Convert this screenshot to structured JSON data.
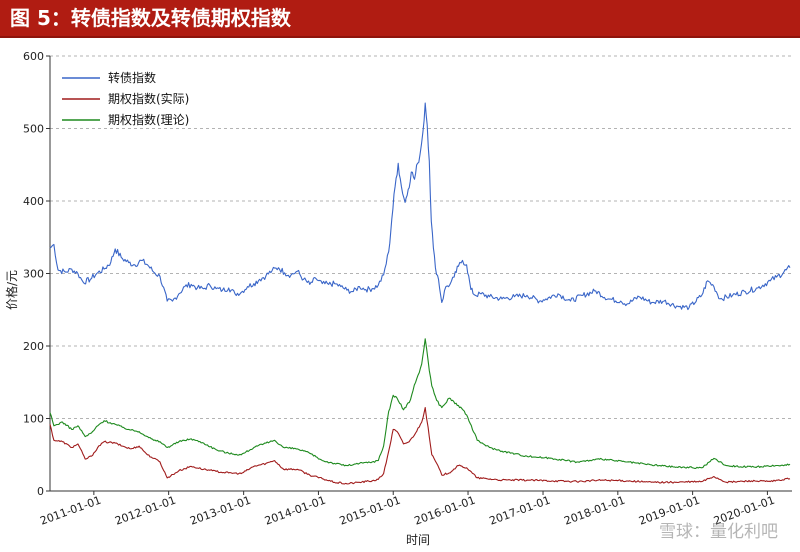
{
  "header": {
    "title": "图 5：转债指数及转债期权指数"
  },
  "watermark": "雪球：量化利吧",
  "colors": {
    "header_bg": "#b01c12",
    "cb_index": "#3a66c8",
    "option_actual": "#a01c1c",
    "option_theory": "#1f8a1f"
  },
  "chart_data": {
    "type": "line",
    "title": "",
    "xlabel": "时间",
    "ylabel": "价格/元",
    "ylim": [
      0,
      600
    ],
    "yticks": [
      0,
      100,
      200,
      300,
      400,
      500,
      600
    ],
    "x_range": [
      "2010-06-01",
      "2020-04-30"
    ],
    "xticks": [
      "2011-01-01",
      "2012-01-01",
      "2013-01-01",
      "2014-01-01",
      "2015-01-01",
      "2016-01-01",
      "2017-01-01",
      "2018-01-01",
      "2019-01-01",
      "2020-01-01"
    ],
    "grid": "horizontal dashed",
    "legend_position": "top-left",
    "series": [
      {
        "name": "转债指数",
        "color": "#3a66c8",
        "points": [
          [
            "2010-06-01",
            335
          ],
          [
            "2010-06-20",
            340
          ],
          [
            "2010-07-10",
            305
          ],
          [
            "2010-08-15",
            302
          ],
          [
            "2010-09-15",
            306
          ],
          [
            "2010-10-15",
            300
          ],
          [
            "2010-11-10",
            288
          ],
          [
            "2010-12-15",
            292
          ],
          [
            "2011-01-15",
            300
          ],
          [
            "2011-02-20",
            306
          ],
          [
            "2011-03-25",
            316
          ],
          [
            "2011-04-15",
            334
          ],
          [
            "2011-05-15",
            322
          ],
          [
            "2011-06-20",
            315
          ],
          [
            "2011-07-20",
            312
          ],
          [
            "2011-08-20",
            318
          ],
          [
            "2011-09-20",
            312
          ],
          [
            "2011-10-20",
            302
          ],
          [
            "2011-11-20",
            296
          ],
          [
            "2011-12-25",
            262
          ],
          [
            "2012-01-20",
            262
          ],
          [
            "2012-02-20",
            272
          ],
          [
            "2012-03-20",
            282
          ],
          [
            "2012-04-20",
            285
          ],
          [
            "2012-05-20",
            280
          ],
          [
            "2012-06-20",
            279
          ],
          [
            "2012-07-20",
            284
          ],
          [
            "2012-08-20",
            279
          ],
          [
            "2012-09-20",
            277
          ],
          [
            "2012-10-20",
            280
          ],
          [
            "2012-11-20",
            272
          ],
          [
            "2012-12-20",
            274
          ],
          [
            "2013-01-20",
            282
          ],
          [
            "2013-02-20",
            286
          ],
          [
            "2013-03-20",
            292
          ],
          [
            "2013-04-20",
            297
          ],
          [
            "2013-05-20",
            304
          ],
          [
            "2013-06-20",
            308
          ],
          [
            "2013-07-20",
            301
          ],
          [
            "2013-08-20",
            298
          ],
          [
            "2013-09-20",
            303
          ],
          [
            "2013-10-20",
            292
          ],
          [
            "2013-11-20",
            285
          ],
          [
            "2013-12-20",
            293
          ],
          [
            "2014-01-20",
            286
          ],
          [
            "2014-02-20",
            285
          ],
          [
            "2014-03-20",
            286
          ],
          [
            "2014-04-20",
            282
          ],
          [
            "2014-05-20",
            277
          ],
          [
            "2014-06-20",
            275
          ],
          [
            "2014-07-20",
            282
          ],
          [
            "2014-08-20",
            278
          ],
          [
            "2014-09-20",
            279
          ],
          [
            "2014-10-20",
            284
          ],
          [
            "2014-11-15",
            298
          ],
          [
            "2014-12-10",
            330
          ],
          [
            "2014-12-25",
            375
          ],
          [
            "2015-01-10",
            420
          ],
          [
            "2015-01-25",
            452
          ],
          [
            "2015-02-10",
            420
          ],
          [
            "2015-02-28",
            398
          ],
          [
            "2015-03-15",
            416
          ],
          [
            "2015-03-30",
            440
          ],
          [
            "2015-04-15",
            430
          ],
          [
            "2015-04-30",
            452
          ],
          [
            "2015-05-12",
            465
          ],
          [
            "2015-05-26",
            495
          ],
          [
            "2015-06-06",
            535
          ],
          [
            "2015-06-16",
            505
          ],
          [
            "2015-06-26",
            455
          ],
          [
            "2015-07-06",
            372
          ],
          [
            "2015-07-16",
            335
          ],
          [
            "2015-07-26",
            308
          ],
          [
            "2015-08-10",
            292
          ],
          [
            "2015-08-26",
            260
          ],
          [
            "2015-09-15",
            282
          ],
          [
            "2015-10-05",
            285
          ],
          [
            "2015-10-25",
            295
          ],
          [
            "2015-11-15",
            310
          ],
          [
            "2015-12-05",
            318
          ],
          [
            "2015-12-25",
            312
          ],
          [
            "2016-01-15",
            278
          ],
          [
            "2016-02-05",
            270
          ],
          [
            "2016-03-05",
            272
          ],
          [
            "2016-04-15",
            268
          ],
          [
            "2016-06-15",
            265
          ],
          [
            "2016-08-15",
            268
          ],
          [
            "2016-10-15",
            270
          ],
          [
            "2016-12-15",
            262
          ],
          [
            "2017-01-15",
            265
          ],
          [
            "2017-03-15",
            272
          ],
          [
            "2017-05-15",
            262
          ],
          [
            "2017-07-15",
            270
          ],
          [
            "2017-09-15",
            276
          ],
          [
            "2017-11-15",
            265
          ],
          [
            "2018-01-15",
            262
          ],
          [
            "2018-02-15",
            258
          ],
          [
            "2018-04-15",
            268
          ],
          [
            "2018-06-15",
            260
          ],
          [
            "2018-08-15",
            262
          ],
          [
            "2018-10-15",
            255
          ],
          [
            "2018-12-15",
            253
          ],
          [
            "2019-02-15",
            270
          ],
          [
            "2019-03-15",
            290
          ],
          [
            "2019-04-15",
            282
          ],
          [
            "2019-05-15",
            265
          ],
          [
            "2019-07-15",
            270
          ],
          [
            "2019-09-15",
            275
          ],
          [
            "2019-11-15",
            280
          ],
          [
            "2020-01-15",
            290
          ],
          [
            "2020-02-15",
            295
          ],
          [
            "2020-04-20",
            308
          ]
        ]
      },
      {
        "name": "期权指数(实际)",
        "color": "#a01c1c",
        "points": [
          [
            "2010-06-01",
            92
          ],
          [
            "2010-06-20",
            70
          ],
          [
            "2010-08-01",
            68
          ],
          [
            "2010-09-15",
            60
          ],
          [
            "2010-10-15",
            65
          ],
          [
            "2010-11-20",
            44
          ],
          [
            "2010-12-20",
            48
          ],
          [
            "2011-01-20",
            60
          ],
          [
            "2011-02-20",
            68
          ],
          [
            "2011-04-15",
            66
          ],
          [
            "2011-05-20",
            62
          ],
          [
            "2011-07-01",
            58
          ],
          [
            "2011-08-10",
            62
          ],
          [
            "2011-09-20",
            50
          ],
          [
            "2011-10-20",
            45
          ],
          [
            "2011-11-20",
            40
          ],
          [
            "2011-12-25",
            18
          ],
          [
            "2012-02-20",
            28
          ],
          [
            "2012-04-20",
            34
          ],
          [
            "2012-06-20",
            30
          ],
          [
            "2012-08-20",
            27
          ],
          [
            "2012-10-20",
            25
          ],
          [
            "2012-12-20",
            24
          ],
          [
            "2013-02-20",
            34
          ],
          [
            "2013-04-20",
            38
          ],
          [
            "2013-06-01",
            42
          ],
          [
            "2013-07-15",
            30
          ],
          [
            "2013-09-20",
            30
          ],
          [
            "2013-11-20",
            22
          ],
          [
            "2014-01-20",
            17
          ],
          [
            "2014-03-20",
            12
          ],
          [
            "2014-05-20",
            10
          ],
          [
            "2014-07-20",
            12
          ],
          [
            "2014-09-20",
            14
          ],
          [
            "2014-10-20",
            16
          ],
          [
            "2014-11-15",
            24
          ],
          [
            "2014-12-10",
            55
          ],
          [
            "2015-01-01",
            85
          ],
          [
            "2015-01-20",
            82
          ],
          [
            "2015-02-20",
            65
          ],
          [
            "2015-03-20",
            68
          ],
          [
            "2015-04-20",
            80
          ],
          [
            "2015-05-20",
            95
          ],
          [
            "2015-06-06",
            115
          ],
          [
            "2015-06-20",
            88
          ],
          [
            "2015-07-08",
            50
          ],
          [
            "2015-08-01",
            38
          ],
          [
            "2015-08-26",
            22
          ],
          [
            "2015-10-01",
            25
          ],
          [
            "2015-11-15",
            35
          ],
          [
            "2015-12-25",
            32
          ],
          [
            "2016-02-15",
            18
          ],
          [
            "2016-06-15",
            15
          ],
          [
            "2016-10-15",
            15
          ],
          [
            "2017-02-15",
            14
          ],
          [
            "2017-06-15",
            13
          ],
          [
            "2017-10-15",
            15
          ],
          [
            "2018-02-15",
            14
          ],
          [
            "2018-06-15",
            12
          ],
          [
            "2018-10-15",
            12
          ],
          [
            "2019-02-15",
            13
          ],
          [
            "2019-04-15",
            20
          ],
          [
            "2019-06-15",
            12
          ],
          [
            "2019-10-15",
            14
          ],
          [
            "2020-01-15",
            13
          ],
          [
            "2020-04-20",
            17
          ]
        ]
      },
      {
        "name": "期权指数(理论)",
        "color": "#1f8a1f",
        "points": [
          [
            "2010-06-01",
            108
          ],
          [
            "2010-06-20",
            90
          ],
          [
            "2010-08-01",
            95
          ],
          [
            "2010-09-15",
            85
          ],
          [
            "2010-10-15",
            90
          ],
          [
            "2010-11-20",
            75
          ],
          [
            "2010-12-20",
            80
          ],
          [
            "2011-01-20",
            90
          ],
          [
            "2011-02-20",
            97
          ],
          [
            "2011-04-15",
            92
          ],
          [
            "2011-05-20",
            88
          ],
          [
            "2011-07-01",
            84
          ],
          [
            "2011-08-10",
            82
          ],
          [
            "2011-09-20",
            75
          ],
          [
            "2011-10-20",
            70
          ],
          [
            "2011-11-20",
            68
          ],
          [
            "2011-12-25",
            60
          ],
          [
            "2012-02-20",
            68
          ],
          [
            "2012-04-20",
            72
          ],
          [
            "2012-06-20",
            66
          ],
          [
            "2012-08-20",
            57
          ],
          [
            "2012-10-20",
            52
          ],
          [
            "2012-12-20",
            50
          ],
          [
            "2013-02-20",
            60
          ],
          [
            "2013-04-20",
            66
          ],
          [
            "2013-06-01",
            70
          ],
          [
            "2013-07-15",
            60
          ],
          [
            "2013-09-20",
            58
          ],
          [
            "2013-11-20",
            52
          ],
          [
            "2014-01-20",
            42
          ],
          [
            "2014-03-20",
            38
          ],
          [
            "2014-05-20",
            35
          ],
          [
            "2014-07-20",
            38
          ],
          [
            "2014-09-20",
            40
          ],
          [
            "2014-10-20",
            42
          ],
          [
            "2014-11-15",
            62
          ],
          [
            "2014-12-10",
            110
          ],
          [
            "2015-01-01",
            132
          ],
          [
            "2015-01-20",
            128
          ],
          [
            "2015-02-20",
            112
          ],
          [
            "2015-03-20",
            122
          ],
          [
            "2015-04-20",
            150
          ],
          [
            "2015-05-20",
            175
          ],
          [
            "2015-06-06",
            210
          ],
          [
            "2015-06-20",
            180
          ],
          [
            "2015-07-08",
            145
          ],
          [
            "2015-08-01",
            125
          ],
          [
            "2015-08-26",
            115
          ],
          [
            "2015-10-01",
            128
          ],
          [
            "2015-11-15",
            118
          ],
          [
            "2015-12-25",
            105
          ],
          [
            "2016-02-15",
            70
          ],
          [
            "2016-04-15",
            60
          ],
          [
            "2016-06-15",
            55
          ],
          [
            "2016-10-15",
            48
          ],
          [
            "2017-02-15",
            45
          ],
          [
            "2017-06-15",
            40
          ],
          [
            "2017-10-15",
            44
          ],
          [
            "2018-02-15",
            40
          ],
          [
            "2018-06-15",
            36
          ],
          [
            "2018-10-15",
            33
          ],
          [
            "2019-02-15",
            32
          ],
          [
            "2019-04-15",
            45
          ],
          [
            "2019-06-15",
            35
          ],
          [
            "2019-10-15",
            33
          ],
          [
            "2020-01-15",
            34
          ],
          [
            "2020-04-20",
            37
          ]
        ]
      }
    ]
  }
}
